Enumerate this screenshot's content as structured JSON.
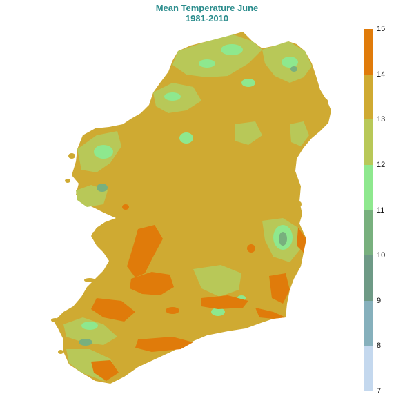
{
  "title": {
    "line1": "Mean Temperature June",
    "line2": "1981-2010"
  },
  "legend": {
    "min": 7,
    "max": 15,
    "ticks": [
      "15",
      "14",
      "13",
      "12",
      "11",
      "10",
      "9",
      "8",
      "7"
    ],
    "bands": [
      {
        "from": 14,
        "to": 15,
        "color": "#e07b0a"
      },
      {
        "from": 13,
        "to": 14,
        "color": "#cfaa32"
      },
      {
        "from": 12,
        "to": 13,
        "color": "#b8c858"
      },
      {
        "from": 11,
        "to": 12,
        "color": "#8ee88e"
      },
      {
        "from": 10,
        "to": 11,
        "color": "#78b07e"
      },
      {
        "from": 9,
        "to": 10,
        "color": "#6e9a86"
      },
      {
        "from": 8,
        "to": 9,
        "color": "#86b0bc"
      },
      {
        "from": 7,
        "to": 8,
        "color": "#c4d8ee"
      }
    ]
  },
  "map": {
    "subject": "Ireland",
    "dominant_color": "#cfaa32",
    "warm_color": "#e07b0a",
    "cool_color": "#b8c858",
    "coolest_color": "#8ee88e"
  }
}
